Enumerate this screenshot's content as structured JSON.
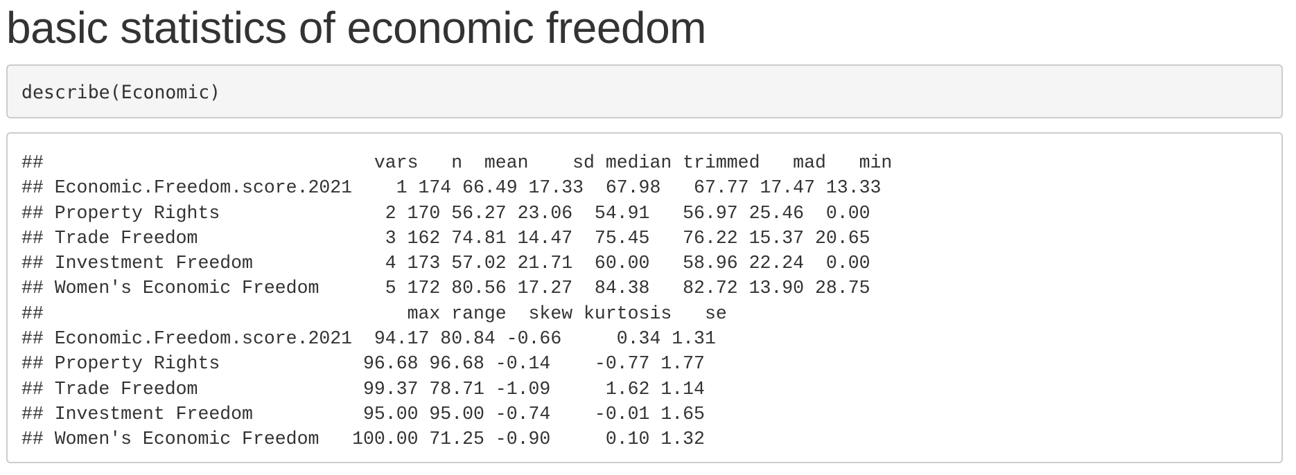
{
  "page": {
    "title": "basic statistics of economic freedom"
  },
  "source": {
    "code": "describe(Economic)"
  },
  "output": {
    "lines": [
      "##                              vars   n  mean    sd median trimmed   mad   min",
      "## Economic.Freedom.score.2021    1 174 66.49 17.33  67.98   67.77 17.47 13.33",
      "## Property Rights               2 170 56.27 23.06  54.91   56.97 25.46  0.00",
      "## Trade Freedom                 3 162 74.81 14.47  75.45   76.22 15.37 20.65",
      "## Investment Freedom            4 173 57.02 21.71  60.00   58.96 22.24  0.00",
      "## Women's Economic Freedom      5 172 80.56 17.27  84.38   82.72 13.90 28.75",
      "##                                 max range  skew kurtosis   se",
      "## Economic.Freedom.score.2021  94.17 80.84 -0.66     0.34 1.31",
      "## Property Rights             96.68 96.68 -0.14    -0.77 1.77",
      "## Trade Freedom               99.37 78.71 -1.09     1.62 1.14",
      "## Investment Freedom          95.00 95.00 -0.74    -0.01 1.65",
      "## Women's Economic Freedom   100.00 71.25 -0.90     0.10 1.32"
    ]
  }
}
